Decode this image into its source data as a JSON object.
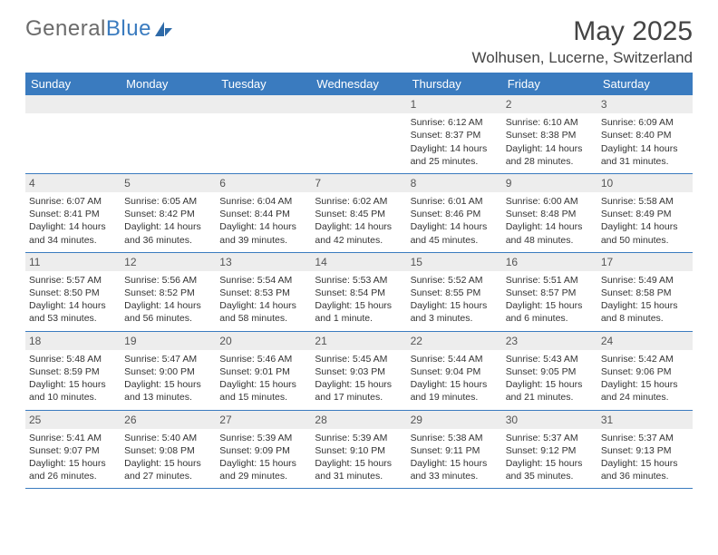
{
  "logo": {
    "text_a": "General",
    "text_b": "Blue"
  },
  "title": "May 2025",
  "location": "Wolhusen, Lucerne, Switzerland",
  "colors": {
    "accent": "#3a7bbf",
    "header_text": "#444444",
    "body_text": "#333333",
    "day_num_bg": "#ededed",
    "day_num_text": "#555555",
    "logo_gray": "#6b6b6b"
  },
  "day_names": [
    "Sunday",
    "Monday",
    "Tuesday",
    "Wednesday",
    "Thursday",
    "Friday",
    "Saturday"
  ],
  "weeks": [
    [
      {
        "blank": true
      },
      {
        "blank": true
      },
      {
        "blank": true
      },
      {
        "blank": true
      },
      {
        "n": "1",
        "sr": "6:12 AM",
        "ss": "8:37 PM",
        "dl": "14 hours and 25 minutes."
      },
      {
        "n": "2",
        "sr": "6:10 AM",
        "ss": "8:38 PM",
        "dl": "14 hours and 28 minutes."
      },
      {
        "n": "3",
        "sr": "6:09 AM",
        "ss": "8:40 PM",
        "dl": "14 hours and 31 minutes."
      }
    ],
    [
      {
        "n": "4",
        "sr": "6:07 AM",
        "ss": "8:41 PM",
        "dl": "14 hours and 34 minutes."
      },
      {
        "n": "5",
        "sr": "6:05 AM",
        "ss": "8:42 PM",
        "dl": "14 hours and 36 minutes."
      },
      {
        "n": "6",
        "sr": "6:04 AM",
        "ss": "8:44 PM",
        "dl": "14 hours and 39 minutes."
      },
      {
        "n": "7",
        "sr": "6:02 AM",
        "ss": "8:45 PM",
        "dl": "14 hours and 42 minutes."
      },
      {
        "n": "8",
        "sr": "6:01 AM",
        "ss": "8:46 PM",
        "dl": "14 hours and 45 minutes."
      },
      {
        "n": "9",
        "sr": "6:00 AM",
        "ss": "8:48 PM",
        "dl": "14 hours and 48 minutes."
      },
      {
        "n": "10",
        "sr": "5:58 AM",
        "ss": "8:49 PM",
        "dl": "14 hours and 50 minutes."
      }
    ],
    [
      {
        "n": "11",
        "sr": "5:57 AM",
        "ss": "8:50 PM",
        "dl": "14 hours and 53 minutes."
      },
      {
        "n": "12",
        "sr": "5:56 AM",
        "ss": "8:52 PM",
        "dl": "14 hours and 56 minutes."
      },
      {
        "n": "13",
        "sr": "5:54 AM",
        "ss": "8:53 PM",
        "dl": "14 hours and 58 minutes."
      },
      {
        "n": "14",
        "sr": "5:53 AM",
        "ss": "8:54 PM",
        "dl": "15 hours and 1 minute."
      },
      {
        "n": "15",
        "sr": "5:52 AM",
        "ss": "8:55 PM",
        "dl": "15 hours and 3 minutes."
      },
      {
        "n": "16",
        "sr": "5:51 AM",
        "ss": "8:57 PM",
        "dl": "15 hours and 6 minutes."
      },
      {
        "n": "17",
        "sr": "5:49 AM",
        "ss": "8:58 PM",
        "dl": "15 hours and 8 minutes."
      }
    ],
    [
      {
        "n": "18",
        "sr": "5:48 AM",
        "ss": "8:59 PM",
        "dl": "15 hours and 10 minutes."
      },
      {
        "n": "19",
        "sr": "5:47 AM",
        "ss": "9:00 PM",
        "dl": "15 hours and 13 minutes."
      },
      {
        "n": "20",
        "sr": "5:46 AM",
        "ss": "9:01 PM",
        "dl": "15 hours and 15 minutes."
      },
      {
        "n": "21",
        "sr": "5:45 AM",
        "ss": "9:03 PM",
        "dl": "15 hours and 17 minutes."
      },
      {
        "n": "22",
        "sr": "5:44 AM",
        "ss": "9:04 PM",
        "dl": "15 hours and 19 minutes."
      },
      {
        "n": "23",
        "sr": "5:43 AM",
        "ss": "9:05 PM",
        "dl": "15 hours and 21 minutes."
      },
      {
        "n": "24",
        "sr": "5:42 AM",
        "ss": "9:06 PM",
        "dl": "15 hours and 24 minutes."
      }
    ],
    [
      {
        "n": "25",
        "sr": "5:41 AM",
        "ss": "9:07 PM",
        "dl": "15 hours and 26 minutes."
      },
      {
        "n": "26",
        "sr": "5:40 AM",
        "ss": "9:08 PM",
        "dl": "15 hours and 27 minutes."
      },
      {
        "n": "27",
        "sr": "5:39 AM",
        "ss": "9:09 PM",
        "dl": "15 hours and 29 minutes."
      },
      {
        "n": "28",
        "sr": "5:39 AM",
        "ss": "9:10 PM",
        "dl": "15 hours and 31 minutes."
      },
      {
        "n": "29",
        "sr": "5:38 AM",
        "ss": "9:11 PM",
        "dl": "15 hours and 33 minutes."
      },
      {
        "n": "30",
        "sr": "5:37 AM",
        "ss": "9:12 PM",
        "dl": "15 hours and 35 minutes."
      },
      {
        "n": "31",
        "sr": "5:37 AM",
        "ss": "9:13 PM",
        "dl": "15 hours and 36 minutes."
      }
    ]
  ],
  "labels": {
    "sunrise": "Sunrise: ",
    "sunset": "Sunset: ",
    "daylight": "Daylight: "
  }
}
